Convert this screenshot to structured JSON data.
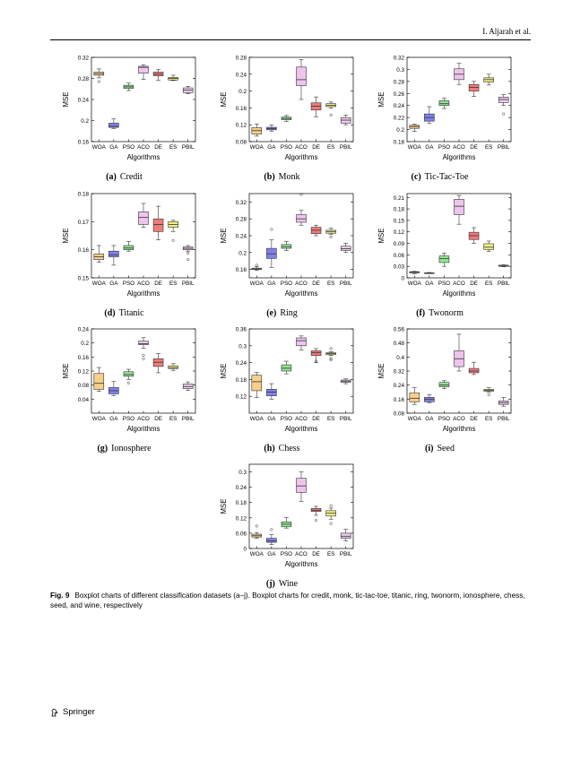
{
  "header": {
    "running_head": "I. Aljarah et al."
  },
  "figure": {
    "label": "Fig. 9",
    "caption": "Boxplot charts of different classification datasets (a–j). Boxplot charts for credit, monk, tic-tac-toe, titanic, ring, twonorm, ionosphere, chess, seed, and wine, respectively"
  },
  "footer": {
    "publisher": "Springer"
  },
  "colors": {
    "WOA": "#f8cf8a",
    "GA": "#8080ee",
    "PSO": "#90e890",
    "ACO": "#eec4ee",
    "DE": "#f07b7b",
    "ES": "#f4f080",
    "PBIL": "#eecaee",
    "median": "#333333"
  },
  "chart_data": [
    {
      "id": "a",
      "type": "box",
      "caption_label": "(a)",
      "caption_name": "Credit",
      "xlabel": "Algorithms",
      "ylabel": "MSE",
      "categories": [
        "WOA",
        "GA",
        "PSO",
        "ACO",
        "DE",
        "ES",
        "PBIL"
      ],
      "ylim": [
        0.16,
        0.32
      ],
      "yticks": [
        0.16,
        0.2,
        0.24,
        0.28,
        0.32
      ],
      "yticklabels": [
        "0.16",
        "0.2",
        "0.24",
        "0.28",
        "0.32"
      ],
      "boxes": [
        {
          "min": 0.281,
          "q1": 0.286,
          "median": 0.289,
          "q3": 0.292,
          "max": 0.298,
          "outliers": [
            0.274
          ]
        },
        {
          "min": 0.185,
          "q1": 0.187,
          "median": 0.189,
          "q3": 0.195,
          "max": 0.203,
          "outliers": []
        },
        {
          "min": 0.257,
          "q1": 0.261,
          "median": 0.264,
          "q3": 0.267,
          "max": 0.271,
          "outliers": []
        },
        {
          "min": 0.278,
          "q1": 0.29,
          "median": 0.301,
          "q3": 0.303,
          "max": 0.306,
          "outliers": []
        },
        {
          "min": 0.276,
          "q1": 0.285,
          "median": 0.288,
          "q3": 0.292,
          "max": 0.297,
          "outliers": []
        },
        {
          "min": 0.276,
          "q1": 0.277,
          "median": 0.28,
          "q3": 0.282,
          "max": 0.286,
          "outliers": []
        },
        {
          "min": 0.251,
          "q1": 0.253,
          "median": 0.258,
          "q3": 0.262,
          "max": 0.265,
          "outliers": []
        }
      ]
    },
    {
      "id": "b",
      "type": "box",
      "caption_label": "(b)",
      "caption_name": "Monk",
      "xlabel": "Algorithms",
      "ylabel": "MSE",
      "categories": [
        "WOA",
        "GA",
        "PSO",
        "ACO",
        "DE",
        "ES",
        "PBIL"
      ],
      "ylim": [
        0.08,
        0.28
      ],
      "yticks": [
        0.08,
        0.12,
        0.16,
        0.2,
        0.24,
        0.28
      ],
      "yticklabels": [
        "0.08",
        "0.12",
        "0.16",
        "0.2",
        "0.24",
        "0.28"
      ],
      "boxes": [
        {
          "min": 0.093,
          "q1": 0.098,
          "median": 0.106,
          "q3": 0.113,
          "max": 0.122,
          "outliers": []
        },
        {
          "min": 0.105,
          "q1": 0.108,
          "median": 0.111,
          "q3": 0.114,
          "max": 0.119,
          "outliers": []
        },
        {
          "min": 0.128,
          "q1": 0.132,
          "median": 0.135,
          "q3": 0.138,
          "max": 0.142,
          "outliers": []
        },
        {
          "min": 0.18,
          "q1": 0.213,
          "median": 0.227,
          "q3": 0.257,
          "max": 0.275,
          "outliers": []
        },
        {
          "min": 0.139,
          "q1": 0.155,
          "median": 0.164,
          "q3": 0.172,
          "max": 0.186,
          "outliers": []
        },
        {
          "min": 0.159,
          "q1": 0.163,
          "median": 0.166,
          "q3": 0.17,
          "max": 0.174,
          "outliers": [
            0.143
          ]
        },
        {
          "min": 0.12,
          "q1": 0.124,
          "median": 0.131,
          "q3": 0.137,
          "max": 0.143,
          "outliers": []
        }
      ]
    },
    {
      "id": "c",
      "type": "box",
      "caption_label": "(c)",
      "caption_name": "Tic-Tac-Toe",
      "xlabel": "Algorithms",
      "ylabel": "MSE",
      "categories": [
        "WOA",
        "GA",
        "PSO",
        "ACO",
        "DE",
        "ES",
        "PBIL"
      ],
      "ylim": [
        0.18,
        0.32
      ],
      "yticks": [
        0.18,
        0.2,
        0.22,
        0.24,
        0.26,
        0.28,
        0.3,
        0.32
      ],
      "yticklabels": [
        "0.18",
        "0.2",
        "0.22",
        "0.24",
        "0.26",
        "0.28",
        "0.3",
        "0.32"
      ],
      "boxes": [
        {
          "min": 0.197,
          "q1": 0.202,
          "median": 0.205,
          "q3": 0.207,
          "max": 0.209,
          "outliers": []
        },
        {
          "min": 0.21,
          "q1": 0.214,
          "median": 0.22,
          "q3": 0.226,
          "max": 0.238,
          "outliers": []
        },
        {
          "min": 0.235,
          "q1": 0.24,
          "median": 0.243,
          "q3": 0.248,
          "max": 0.252,
          "outliers": []
        },
        {
          "min": 0.275,
          "q1": 0.283,
          "median": 0.292,
          "q3": 0.301,
          "max": 0.31,
          "outliers": []
        },
        {
          "min": 0.255,
          "q1": 0.264,
          "median": 0.27,
          "q3": 0.275,
          "max": 0.28,
          "outliers": []
        },
        {
          "min": 0.274,
          "q1": 0.279,
          "median": 0.283,
          "q3": 0.286,
          "max": 0.292,
          "outliers": []
        },
        {
          "min": 0.24,
          "q1": 0.245,
          "median": 0.25,
          "q3": 0.254,
          "max": 0.258,
          "outliers": [
            0.226
          ]
        }
      ]
    },
    {
      "id": "d",
      "type": "box",
      "caption_label": "(d)",
      "caption_name": "Titanic",
      "xlabel": "Algorithms",
      "ylabel": "MSE",
      "categories": [
        "WOA",
        "GA",
        "PSO",
        "ACO",
        "DE",
        "ES",
        "PBIL"
      ],
      "ylim": [
        0.15,
        0.18
      ],
      "yticks": [
        0.15,
        0.16,
        0.17,
        0.18
      ],
      "yticklabels": [
        "0.15",
        "0.16",
        "0.17",
        "0.18"
      ],
      "boxes": [
        {
          "min": 0.1555,
          "q1": 0.1565,
          "median": 0.1575,
          "q3": 0.1585,
          "max": 0.1615,
          "outliers": []
        },
        {
          "min": 0.1545,
          "q1": 0.1575,
          "median": 0.1582,
          "q3": 0.1595,
          "max": 0.1615,
          "outliers": []
        },
        {
          "min": 0.1595,
          "q1": 0.16,
          "median": 0.1606,
          "q3": 0.1615,
          "max": 0.163,
          "outliers": []
        },
        {
          "min": 0.168,
          "q1": 0.169,
          "median": 0.1715,
          "q3": 0.1735,
          "max": 0.1765,
          "outliers": []
        },
        {
          "min": 0.1635,
          "q1": 0.1665,
          "median": 0.169,
          "q3": 0.171,
          "max": 0.1755,
          "outliers": []
        },
        {
          "min": 0.1665,
          "q1": 0.168,
          "median": 0.169,
          "q3": 0.17,
          "max": 0.1705,
          "outliers": [
            0.1633
          ]
        },
        {
          "min": 0.1595,
          "q1": 0.16,
          "median": 0.1605,
          "q3": 0.161,
          "max": 0.1615,
          "outliers": [
            0.1588,
            0.1565
          ]
        }
      ]
    },
    {
      "id": "e",
      "type": "box",
      "caption_label": "(e)",
      "caption_name": "Ring",
      "xlabel": "Algorithms",
      "ylabel": "MSE",
      "categories": [
        "WOA",
        "GA",
        "PSO",
        "ACO",
        "DE",
        "ES",
        "PBIL"
      ],
      "ylim": [
        0.14,
        0.34
      ],
      "yticks": [
        0.16,
        0.2,
        0.24,
        0.28,
        0.32
      ],
      "yticklabels": [
        "0.16",
        "0.2",
        "0.24",
        "0.28",
        "0.32"
      ],
      "boxes": [
        {
          "min": 0.158,
          "q1": 0.16,
          "median": 0.161,
          "q3": 0.163,
          "max": 0.166,
          "outliers": [
            0.17
          ]
        },
        {
          "min": 0.165,
          "q1": 0.186,
          "median": 0.197,
          "q3": 0.21,
          "max": 0.23,
          "outliers": [
            0.255
          ]
        },
        {
          "min": 0.205,
          "q1": 0.21,
          "median": 0.214,
          "q3": 0.219,
          "max": 0.226,
          "outliers": []
        },
        {
          "min": 0.265,
          "q1": 0.272,
          "median": 0.28,
          "q3": 0.29,
          "max": 0.3,
          "outliers": [
            0.338
          ]
        },
        {
          "min": 0.24,
          "q1": 0.245,
          "median": 0.253,
          "q3": 0.26,
          "max": 0.265,
          "outliers": []
        },
        {
          "min": 0.243,
          "q1": 0.246,
          "median": 0.25,
          "q3": 0.253,
          "max": 0.258,
          "outliers": [
            0.237
          ]
        },
        {
          "min": 0.2,
          "q1": 0.205,
          "median": 0.209,
          "q3": 0.215,
          "max": 0.222,
          "outliers": []
        }
      ]
    },
    {
      "id": "f",
      "type": "box",
      "caption_label": "(f)",
      "caption_name": "Twonorm",
      "xlabel": "Algorithms",
      "ylabel": "MSE",
      "categories": [
        "WOA",
        "GA",
        "PSO",
        "ACO",
        "DE",
        "ES",
        "PBIL"
      ],
      "ylim": [
        0,
        0.22
      ],
      "yticks": [
        0,
        0.03,
        0.06,
        0.09,
        0.12,
        0.15,
        0.18,
        0.21
      ],
      "yticklabels": [
        "0",
        "0.03",
        "0.06",
        "0.09",
        "0.12",
        "0.15",
        "0.18",
        "0.21"
      ],
      "boxes": [
        {
          "min": 0.011,
          "q1": 0.013,
          "median": 0.015,
          "q3": 0.016,
          "max": 0.017,
          "outliers": []
        },
        {
          "min": 0.011,
          "q1": 0.012,
          "median": 0.012,
          "q3": 0.013,
          "max": 0.014,
          "outliers": []
        },
        {
          "min": 0.03,
          "q1": 0.04,
          "median": 0.05,
          "q3": 0.057,
          "max": 0.064,
          "outliers": []
        },
        {
          "min": 0.14,
          "q1": 0.165,
          "median": 0.187,
          "q3": 0.205,
          "max": 0.215,
          "outliers": []
        },
        {
          "min": 0.09,
          "q1": 0.1,
          "median": 0.11,
          "q3": 0.119,
          "max": 0.131,
          "outliers": []
        },
        {
          "min": 0.069,
          "q1": 0.074,
          "median": 0.08,
          "q3": 0.089,
          "max": 0.096,
          "outliers": []
        },
        {
          "min": 0.029,
          "q1": 0.03,
          "median": 0.032,
          "q3": 0.033,
          "max": 0.034,
          "outliers": []
        }
      ]
    },
    {
      "id": "g",
      "type": "box",
      "caption_label": "(g)",
      "caption_name": "Ionosphere",
      "xlabel": "Algorithms",
      "ylabel": "MSE",
      "categories": [
        "WOA",
        "GA",
        "PSO",
        "ACO",
        "DE",
        "ES",
        "PBIL"
      ],
      "ylim": [
        0.0,
        0.24
      ],
      "yticks": [
        0.04,
        0.08,
        0.12,
        0.16,
        0.2,
        0.24
      ],
      "yticklabels": [
        "0.04",
        "0.08",
        "0.12",
        "0.16",
        "0.2",
        "0.24"
      ],
      "boxes": [
        {
          "min": 0.062,
          "q1": 0.068,
          "median": 0.085,
          "q3": 0.113,
          "max": 0.13,
          "outliers": []
        },
        {
          "min": 0.05,
          "q1": 0.055,
          "median": 0.064,
          "q3": 0.073,
          "max": 0.09,
          "outliers": []
        },
        {
          "min": 0.096,
          "q1": 0.105,
          "median": 0.11,
          "q3": 0.118,
          "max": 0.125,
          "outliers": [
            0.086
          ]
        },
        {
          "min": 0.185,
          "q1": 0.195,
          "median": 0.198,
          "q3": 0.205,
          "max": 0.215,
          "outliers": [
            0.165,
            0.155
          ]
        },
        {
          "min": 0.115,
          "q1": 0.133,
          "median": 0.145,
          "q3": 0.155,
          "max": 0.17,
          "outliers": []
        },
        {
          "min": 0.122,
          "q1": 0.127,
          "median": 0.13,
          "q3": 0.135,
          "max": 0.141,
          "outliers": []
        },
        {
          "min": 0.065,
          "q1": 0.07,
          "median": 0.076,
          "q3": 0.083,
          "max": 0.089,
          "outliers": []
        }
      ]
    },
    {
      "id": "h",
      "type": "box",
      "caption_label": "(h)",
      "caption_name": "Chess",
      "xlabel": "Algorithms",
      "ylabel": "MSE",
      "categories": [
        "WOA",
        "GA",
        "PSO",
        "ACO",
        "DE",
        "ES",
        "PBIL"
      ],
      "ylim": [
        0.06,
        0.36
      ],
      "yticks": [
        0.12,
        0.18,
        0.24,
        0.3,
        0.36
      ],
      "yticklabels": [
        "0.12",
        "0.18",
        "0.24",
        "0.3",
        "0.36"
      ],
      "boxes": [
        {
          "min": 0.115,
          "q1": 0.14,
          "median": 0.172,
          "q3": 0.195,
          "max": 0.205,
          "outliers": []
        },
        {
          "min": 0.11,
          "q1": 0.122,
          "median": 0.135,
          "q3": 0.145,
          "max": 0.165,
          "outliers": []
        },
        {
          "min": 0.2,
          "q1": 0.21,
          "median": 0.22,
          "q3": 0.232,
          "max": 0.245,
          "outliers": []
        },
        {
          "min": 0.285,
          "q1": 0.3,
          "median": 0.318,
          "q3": 0.328,
          "max": 0.335,
          "outliers": []
        },
        {
          "min": 0.24,
          "q1": 0.265,
          "median": 0.275,
          "q3": 0.282,
          "max": 0.29,
          "outliers": [
            0.245
          ]
        },
        {
          "min": 0.265,
          "q1": 0.268,
          "median": 0.272,
          "q3": 0.275,
          "max": 0.278,
          "outliers": [
            0.29,
            0.255,
            0.25
          ]
        },
        {
          "min": 0.165,
          "q1": 0.17,
          "median": 0.174,
          "q3": 0.178,
          "max": 0.182,
          "outliers": []
        }
      ]
    },
    {
      "id": "i",
      "type": "box",
      "caption_label": "(i)",
      "caption_name": "Seed",
      "xlabel": "Algorithms",
      "ylabel": "MSE",
      "categories": [
        "WOA",
        "GA",
        "PSO",
        "ACO",
        "DE",
        "ES",
        "PBIL"
      ],
      "ylim": [
        0.08,
        0.56
      ],
      "yticks": [
        0.08,
        0.16,
        0.24,
        0.32,
        0.4,
        0.48,
        0.56
      ],
      "yticklabels": [
        "0.08",
        "0.16",
        "0.24",
        "0.32",
        "0.4",
        "0.48",
        "0.56"
      ],
      "boxes": [
        {
          "min": 0.13,
          "q1": 0.145,
          "median": 0.165,
          "q3": 0.195,
          "max": 0.225,
          "outliers": []
        },
        {
          "min": 0.14,
          "q1": 0.145,
          "median": 0.158,
          "q3": 0.17,
          "max": 0.185,
          "outliers": []
        },
        {
          "min": 0.22,
          "q1": 0.23,
          "median": 0.24,
          "q3": 0.255,
          "max": 0.265,
          "outliers": []
        },
        {
          "min": 0.32,
          "q1": 0.345,
          "median": 0.39,
          "q3": 0.435,
          "max": 0.53,
          "outliers": []
        },
        {
          "min": 0.3,
          "q1": 0.31,
          "median": 0.32,
          "q3": 0.335,
          "max": 0.37,
          "outliers": []
        },
        {
          "min": 0.2,
          "q1": 0.205,
          "median": 0.21,
          "q3": 0.215,
          "max": 0.225,
          "outliers": [
            0.185
          ]
        },
        {
          "min": 0.12,
          "q1": 0.13,
          "median": 0.14,
          "q3": 0.15,
          "max": 0.17,
          "outliers": []
        }
      ]
    },
    {
      "id": "j",
      "type": "box",
      "caption_label": "(j)",
      "caption_name": "Wine",
      "xlabel": "Algorithms",
      "ylabel": "MSE",
      "categories": [
        "WOA",
        "GA",
        "PSO",
        "ACO",
        "DE",
        "ES",
        "PBIL"
      ],
      "ylim": [
        0,
        0.33
      ],
      "yticks": [
        0,
        0.06,
        0.12,
        0.18,
        0.24,
        0.3
      ],
      "yticklabels": [
        "0",
        "0.06",
        "0.12",
        "0.18",
        "0.24",
        "0.3"
      ],
      "boxes": [
        {
          "min": 0.04,
          "q1": 0.045,
          "median": 0.05,
          "q3": 0.056,
          "max": 0.062,
          "outliers": [
            0.088
          ]
        },
        {
          "min": 0.015,
          "q1": 0.024,
          "median": 0.03,
          "q3": 0.04,
          "max": 0.054,
          "outliers": [
            0.074
          ]
        },
        {
          "min": 0.08,
          "q1": 0.085,
          "median": 0.095,
          "q3": 0.104,
          "max": 0.122,
          "outliers": []
        },
        {
          "min": 0.185,
          "q1": 0.22,
          "median": 0.245,
          "q3": 0.275,
          "max": 0.3,
          "outliers": []
        },
        {
          "min": 0.13,
          "q1": 0.145,
          "median": 0.15,
          "q3": 0.157,
          "max": 0.165,
          "outliers": [
            0.11
          ]
        },
        {
          "min": 0.115,
          "q1": 0.127,
          "median": 0.138,
          "q3": 0.148,
          "max": 0.158,
          "outliers": [
            0.098,
            0.168
          ]
        },
        {
          "min": 0.03,
          "q1": 0.04,
          "median": 0.048,
          "q3": 0.06,
          "max": 0.075,
          "outliers": []
        }
      ]
    }
  ]
}
